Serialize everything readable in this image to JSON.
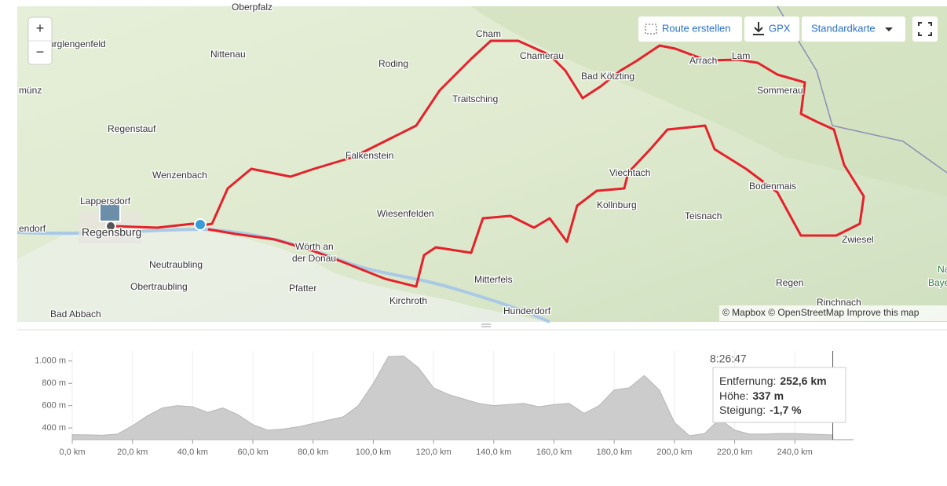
{
  "toolbar": {
    "zoom_in": "+",
    "zoom_out": "−",
    "route": "Route erstellen",
    "gpx": "GPX",
    "map_style": "Standardkarte"
  },
  "map": {
    "places": [
      "Oberpfalz",
      "urglengenfeld",
      "Nittenau",
      "Roding",
      "Cham",
      "Chamerau",
      "Bad Kötzting",
      "Arrach",
      "Lam",
      "Sommerau",
      "münz",
      "Traitsching",
      "Regenstauf",
      "Falkenstein",
      "Wenzenbach",
      "Viechtach",
      "Bodenmais",
      "Lappersdorf",
      "Kollnburg",
      "Wiesenfelden",
      "Teisnach",
      "endorf",
      "Regensburg",
      "Wörth an",
      "der Donau",
      "Zwiesel",
      "Neutraubling",
      "Mitterfels",
      "Regen",
      "Obertraubling",
      "Pfatter",
      "Kirchroth",
      "Rinchnach",
      "Bad Abbach",
      "Hunderdorf",
      "Na",
      "Baye"
    ],
    "attribution": "© Mapbox © OpenStreetMap Improve this map"
  },
  "chart_data": {
    "type": "area",
    "color": "#cccccc",
    "x": [
      0,
      5,
      10,
      15,
      20,
      25,
      30,
      35,
      40,
      45,
      50,
      55,
      60,
      65,
      70,
      75,
      80,
      85,
      90,
      95,
      100,
      105,
      110,
      115,
      120,
      125,
      130,
      135,
      140,
      145,
      150,
      155,
      160,
      165,
      170,
      175,
      180,
      185,
      190,
      195,
      200,
      205,
      210,
      215,
      220,
      225,
      230,
      235,
      240,
      245,
      250,
      252.6
    ],
    "values": [
      340,
      338,
      335,
      345,
      420,
      510,
      580,
      600,
      590,
      540,
      580,
      520,
      430,
      380,
      390,
      410,
      440,
      470,
      500,
      600,
      800,
      1040,
      1045,
      940,
      760,
      700,
      660,
      620,
      600,
      610,
      620,
      590,
      610,
      620,
      530,
      600,
      740,
      760,
      870,
      740,
      450,
      330,
      350,
      480,
      380,
      345,
      345,
      350,
      350,
      345,
      340,
      337
    ],
    "xlim": [
      0,
      259.5
    ],
    "ylim": [
      295,
      1090
    ],
    "xticks": [
      {
        "value": 0,
        "label": "0,0 km"
      },
      {
        "value": 20,
        "label": "20,0 km"
      },
      {
        "value": 40,
        "label": "40,0 km"
      },
      {
        "value": 60,
        "label": "60,0 km"
      },
      {
        "value": 80,
        "label": "80,0 km"
      },
      {
        "value": 100,
        "label": "100,0 km"
      },
      {
        "value": 120,
        "label": "120,0 km"
      },
      {
        "value": 140,
        "label": "140,0 km"
      },
      {
        "value": 160,
        "label": "160,0 km"
      },
      {
        "value": 180,
        "label": "180,0 km"
      },
      {
        "value": 200,
        "label": "200,0 km"
      },
      {
        "value": 220,
        "label": "220,0 km"
      },
      {
        "value": 240,
        "label": "240,0 km"
      }
    ],
    "yticks": [
      {
        "value": 400,
        "label": "400 m"
      },
      {
        "value": 600,
        "label": "600 m"
      },
      {
        "value": 800,
        "label": "800 m"
      },
      {
        "value": 1000,
        "label": "1.000 m"
      }
    ],
    "grid": true,
    "tooltip": {
      "time": "8:26:47",
      "distance_label": "Entfernung:",
      "distance": "252,6 km",
      "height_label": "Höhe:",
      "height": "337 m",
      "grade_label": "Steigung:",
      "grade": "-1,7 %"
    }
  }
}
